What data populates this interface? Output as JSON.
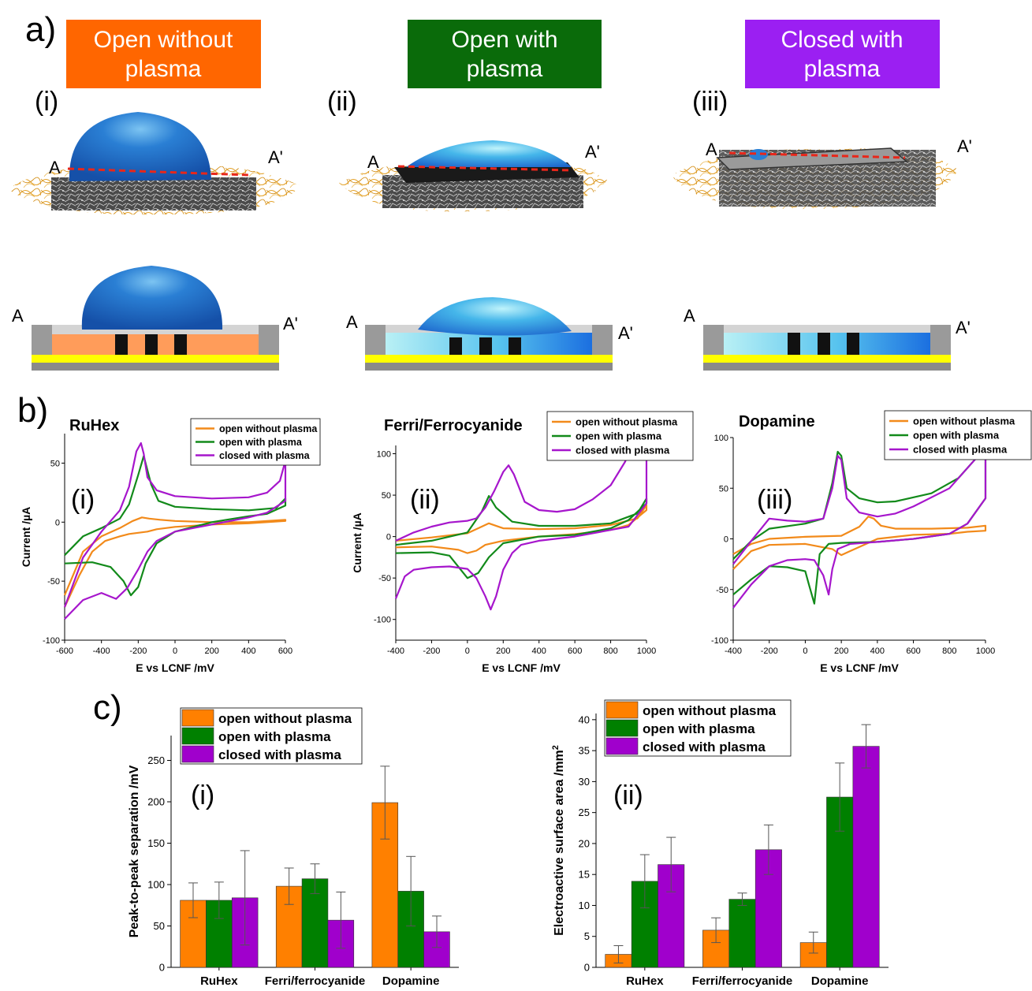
{
  "panel_a": {
    "label": "a)",
    "banners": [
      {
        "line1": "Open without",
        "line2": "plasma",
        "color": "#ff6600"
      },
      {
        "line1": "Open with",
        "line2": "plasma",
        "color": "#0a6b0a"
      },
      {
        "line1": "Closed with",
        "line2": "plasma",
        "color": "#9b1ff2"
      }
    ],
    "sub_labels": [
      "(i)",
      "(ii)",
      "(iii)"
    ],
    "section_labels": {
      "a": "A",
      "a_prime": "A'"
    },
    "colors": {
      "fiber": "#e6a82a",
      "droplet": "#1f6fd1",
      "droplet_light": "#5ad3ec",
      "cut_line": "#e8271a",
      "substrate_yellow": "#ffff00",
      "base_grey": "#8a8a8a",
      "fill_orange": "#ff9c5a",
      "electrode_black": "#111111"
    }
  },
  "panel_b": {
    "label": "b)"
  },
  "panel_c": {
    "label": "c)"
  },
  "chart_data": [
    {
      "id": "b-i",
      "type": "line",
      "title": "RuHex",
      "panel_label": "(i)",
      "xlabel": "E vs LCNF /mV",
      "ylabel": "Current /µA",
      "xlim": [
        -600,
        600
      ],
      "ylim": [
        -100,
        75
      ],
      "xticks": [
        -600,
        -400,
        -200,
        0,
        200,
        400,
        600
      ],
      "yticks": [
        -100,
        -50,
        0,
        50
      ],
      "legend": "top-right",
      "series": [
        {
          "name": "open without plasma",
          "color": "#f28a1a",
          "x": [
            -600,
            -500,
            -400,
            -300,
            -230,
            -180,
            -140,
            -80,
            0,
            200,
            400,
            600,
            600,
            400,
            200,
            0,
            -100,
            -150,
            -200,
            -250,
            -300,
            -380,
            -450,
            -520,
            -600
          ],
          "y": [
            -62,
            -25,
            -12,
            -5,
            1,
            4,
            3,
            2,
            1,
            0,
            0,
            2,
            1,
            -1,
            -2,
            -4,
            -6,
            -8,
            -9,
            -10,
            -12,
            -16,
            -25,
            -45,
            -72
          ]
        },
        {
          "name": "open with plasma",
          "color": "#128a1a",
          "x": [
            -600,
            -500,
            -400,
            -300,
            -250,
            -200,
            -170,
            -130,
            -90,
            0,
            200,
            400,
            550,
            600,
            600,
            500,
            400,
            200,
            0,
            -100,
            -160,
            -200,
            -240,
            -280,
            -350,
            -450,
            -600
          ],
          "y": [
            -28,
            -12,
            -5,
            3,
            15,
            40,
            56,
            32,
            18,
            13,
            11,
            10,
            12,
            20,
            14,
            7,
            5,
            0,
            -8,
            -18,
            -35,
            -55,
            -62,
            -50,
            -38,
            -34,
            -35
          ]
        },
        {
          "name": "closed with plasma",
          "color": "#a616cc",
          "x": [
            -600,
            -500,
            -400,
            -300,
            -250,
            -210,
            -185,
            -170,
            -150,
            -100,
            0,
            200,
            400,
            500,
            570,
            600,
            600,
            500,
            400,
            200,
            0,
            -100,
            -150,
            -200,
            -260,
            -320,
            -400,
            -500,
            -600
          ],
          "y": [
            -72,
            -30,
            -8,
            10,
            30,
            60,
            67,
            58,
            38,
            27,
            22,
            20,
            21,
            25,
            35,
            52,
            18,
            8,
            4,
            -2,
            -8,
            -16,
            -25,
            -40,
            -56,
            -65,
            -60,
            -66,
            -82
          ]
        }
      ]
    },
    {
      "id": "b-ii",
      "type": "line",
      "title": "Ferri/Ferrocyanide",
      "panel_label": "(ii)",
      "xlabel": "E vs LCNF /mV",
      "ylabel": "Current /µA",
      "xlim": [
        -400,
        1000
      ],
      "ylim": [
        -125,
        110
      ],
      "xticks": [
        -400,
        -200,
        0,
        200,
        400,
        600,
        800,
        1000
      ],
      "yticks": [
        -100,
        -50,
        0,
        50,
        100
      ],
      "legend": "top-right",
      "series": [
        {
          "name": "open without plasma",
          "color": "#f28a1a",
          "x": [
            -400,
            -200,
            0,
            80,
            120,
            200,
            400,
            600,
            800,
            950,
            1000,
            1000,
            900,
            800,
            600,
            400,
            200,
            100,
            50,
            0,
            -50,
            -200,
            -400
          ],
          "y": [
            -5,
            -1,
            4,
            12,
            16,
            10,
            9,
            10,
            14,
            22,
            38,
            32,
            14,
            8,
            3,
            0,
            -5,
            -10,
            -17,
            -20,
            -16,
            -12,
            -13
          ]
        },
        {
          "name": "open with plasma",
          "color": "#128a1a",
          "x": [
            -400,
            -200,
            0,
            80,
            120,
            160,
            250,
            400,
            600,
            800,
            950,
            1000,
            1000,
            900,
            800,
            600,
            400,
            200,
            120,
            60,
            0,
            -100,
            -200,
            -400
          ],
          "y": [
            -10,
            -5,
            5,
            30,
            49,
            35,
            18,
            13,
            13,
            16,
            28,
            46,
            40,
            20,
            10,
            2,
            0,
            -8,
            -25,
            -44,
            -50,
            -23,
            -19,
            -20
          ]
        },
        {
          "name": "closed with plasma",
          "color": "#a616cc",
          "x": [
            -400,
            -300,
            -200,
            -100,
            0,
            50,
            100,
            150,
            200,
            230,
            260,
            320,
            400,
            500,
            600,
            700,
            800,
            880,
            900,
            1000,
            1000,
            900,
            800,
            600,
            400,
            300,
            250,
            200,
            160,
            130,
            100,
            50,
            0,
            -100,
            -200,
            -300,
            -350,
            -400
          ],
          "y": [
            -5,
            5,
            12,
            17,
            19,
            22,
            35,
            55,
            78,
            86,
            75,
            42,
            32,
            30,
            33,
            45,
            62,
            90,
            100,
            100,
            40,
            12,
            8,
            0,
            -5,
            -10,
            -20,
            -40,
            -72,
            -88,
            -72,
            -50,
            -39,
            -36,
            -37,
            -40,
            -48,
            -75
          ]
        }
      ]
    },
    {
      "id": "b-iii",
      "type": "line",
      "title": "Dopamine",
      "panel_label": "(iii)",
      "xlabel": "E vs LCNF /mV",
      "ylabel": "",
      "xlim": [
        -400,
        1000
      ],
      "ylim": [
        -100,
        100
      ],
      "xticks": [
        -400,
        -200,
        0,
        200,
        400,
        600,
        800,
        1000
      ],
      "yticks": [
        -100,
        -50,
        0,
        50,
        100
      ],
      "legend": "top-right",
      "series": [
        {
          "name": "open without plasma",
          "color": "#f28a1a",
          "x": [
            -400,
            -300,
            -200,
            0,
            200,
            300,
            350,
            380,
            420,
            500,
            700,
            900,
            1000,
            1000,
            900,
            800,
            600,
            400,
            250,
            200,
            150,
            0,
            -200,
            -300,
            -400
          ],
          "y": [
            -15,
            -5,
            0,
            2,
            3,
            12,
            22,
            20,
            13,
            10,
            10,
            11,
            13,
            8,
            7,
            5,
            4,
            0,
            -12,
            -16,
            -10,
            -5,
            -6,
            -12,
            -30
          ]
        },
        {
          "name": "open with plasma",
          "color": "#128a1a",
          "x": [
            -400,
            -300,
            -200,
            0,
            100,
            150,
            180,
            200,
            230,
            300,
            400,
            500,
            700,
            850,
            950,
            1000,
            1000,
            900,
            800,
            600,
            400,
            200,
            130,
            80,
            50,
            20,
            0,
            -100,
            -200,
            -300,
            -400
          ],
          "y": [
            -20,
            -2,
            10,
            15,
            20,
            55,
            86,
            82,
            50,
            40,
            36,
            37,
            45,
            60,
            80,
            100,
            40,
            15,
            5,
            0,
            -3,
            -4,
            -5,
            -15,
            -64,
            -45,
            -32,
            -28,
            -27,
            -40,
            -55
          ]
        },
        {
          "name": "closed with plasma",
          "color": "#a616cc",
          "x": [
            -400,
            -300,
            -200,
            -100,
            0,
            100,
            150,
            180,
            200,
            230,
            300,
            400,
            500,
            600,
            800,
            950,
            1000,
            1000,
            900,
            800,
            600,
            400,
            250,
            180,
            150,
            130,
            100,
            50,
            0,
            -100,
            -200,
            -300,
            -400
          ],
          "y": [
            -25,
            -2,
            20,
            18,
            17,
            20,
            50,
            82,
            78,
            40,
            26,
            22,
            25,
            32,
            50,
            80,
            100,
            40,
            15,
            5,
            0,
            -3,
            -5,
            -10,
            -30,
            -55,
            -36,
            -21,
            -20,
            -21,
            -27,
            -45,
            -68
          ]
        }
      ]
    },
    {
      "id": "c-i",
      "type": "bar",
      "panel_label": "(i)",
      "xlabel": "",
      "ylabel": "Peak-to-peak separation /mV",
      "categories": [
        "RuHex",
        "Ferri/ferrocyanide",
        "Dopamine"
      ],
      "ylim": [
        0,
        280
      ],
      "yticks": [
        0,
        50,
        100,
        150,
        200,
        250
      ],
      "legend": "top-left",
      "series": [
        {
          "name": "open without plasma",
          "color": "#ff8000",
          "values": [
            81,
            98,
            199
          ],
          "errors": [
            21,
            22,
            44
          ]
        },
        {
          "name": "open with plasma",
          "color": "#008000",
          "values": [
            81,
            107,
            92
          ],
          "errors": [
            22,
            18,
            42
          ]
        },
        {
          "name": "closed with plasma",
          "color": "#a000cc",
          "values": [
            84,
            57,
            43
          ],
          "errors": [
            57,
            34,
            19
          ]
        }
      ]
    },
    {
      "id": "c-ii",
      "type": "bar",
      "panel_label": "(ii)",
      "xlabel": "",
      "ylabel": "Electroactive surface area /mm",
      "ylabel_sup": "2",
      "categories": [
        "RuHex",
        "Ferri/ferrocyanide",
        "Dopamine"
      ],
      "ylim": [
        0,
        41
      ],
      "yticks": [
        0,
        5,
        10,
        15,
        20,
        25,
        30,
        35,
        40
      ],
      "legend": "top-left",
      "series": [
        {
          "name": "open without plasma",
          "color": "#ff8000",
          "values": [
            2.1,
            6,
            4
          ],
          "errors": [
            1.4,
            2,
            1.7
          ]
        },
        {
          "name": "open with plasma",
          "color": "#008000",
          "values": [
            13.9,
            11,
            27.5
          ],
          "errors": [
            4.3,
            1,
            5.5
          ]
        },
        {
          "name": "closed with plasma",
          "color": "#a000cc",
          "values": [
            16.6,
            19,
            35.7
          ],
          "errors": [
            4.4,
            4,
            3.5
          ]
        }
      ]
    }
  ]
}
